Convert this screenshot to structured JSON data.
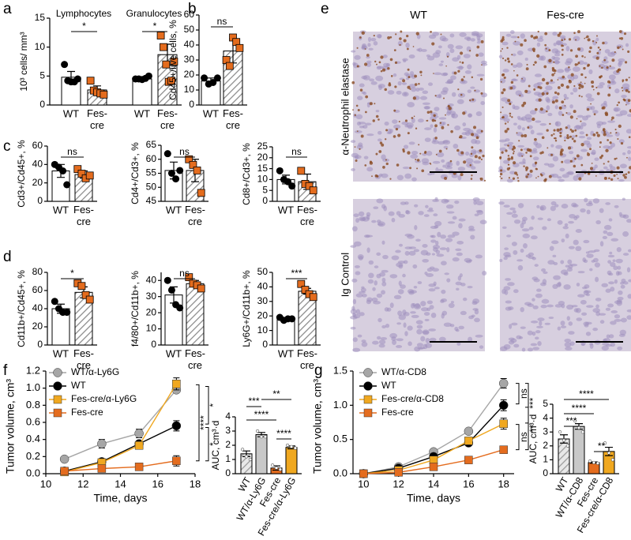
{
  "panel_labels": [
    "a",
    "b",
    "c",
    "d",
    "e",
    "f",
    "g"
  ],
  "images": {
    "columns": [
      "WT",
      "Fes-cre"
    ],
    "rows": [
      "α-Neutrophil elastase",
      "Ig Control"
    ]
  },
  "chart_data": [
    {
      "type": "bar",
      "group_labels": [
        "Lymphocytes",
        "Granulocytes"
      ],
      "ylabel": "10³ cells/ mm³",
      "ylim": [
        0,
        15
      ],
      "yticks": [
        0,
        5,
        10,
        15
      ],
      "categories": [
        "WT",
        "Fes-cre",
        "WT",
        "Fes-cre"
      ],
      "values": [
        4.8,
        2.6,
        4.5,
        8.7
      ],
      "errors": [
        1.0,
        0.7,
        0.3,
        1.8
      ],
      "points": [
        [
          7,
          4.2,
          4,
          4,
          4.5
        ],
        [
          4.2,
          2.5,
          2.2,
          2,
          1.8
        ],
        [
          4.5,
          4.5,
          4.4,
          4.6,
          5
        ],
        [
          12,
          10,
          7,
          4,
          4.2,
          7.5
        ]
      ],
      "fills": [
        "#ffffff",
        "hatch",
        "#ffffff",
        "hatch"
      ],
      "point_colors": [
        "#000000",
        "#e46c1e",
        "#000000",
        "#e46c1e"
      ],
      "point_shapes": [
        "circle",
        "square",
        "circle",
        "square"
      ],
      "annotations": [
        "*",
        "*"
      ]
    },
    {
      "type": "bar",
      "ylabel": "Cd45+/live cells, %",
      "ylim": [
        0,
        60
      ],
      "yticks": [
        0,
        10,
        20,
        30,
        40,
        50,
        60
      ],
      "categories": [
        "WT",
        "Fes-cre"
      ],
      "values": [
        16,
        36
      ],
      "errors": [
        2,
        8
      ],
      "points": [
        [
          18,
          14,
          15,
          18
        ],
        [
          30,
          26,
          45,
          42,
          38
        ]
      ],
      "fills": [
        "#ffffff",
        "hatch"
      ],
      "point_colors": [
        "#000000",
        "#e46c1e"
      ],
      "point_shapes": [
        "circle",
        "square"
      ],
      "annotations": [
        "ns"
      ]
    },
    {
      "type": "bar",
      "ylabel": "Cd3+/Cd45+, %",
      "ylim": [
        0,
        60
      ],
      "yticks": [
        0,
        20,
        40,
        60
      ],
      "categories": [
        "WT",
        "Fes-cre"
      ],
      "values": [
        33,
        29
      ],
      "errors": [
        7,
        4
      ],
      "points": [
        [
          40,
          37,
          33,
          18
        ],
        [
          35,
          30,
          25,
          28
        ]
      ],
      "fills": [
        "#ffffff",
        "hatch"
      ],
      "point_colors": [
        "#000000",
        "#e46c1e"
      ],
      "point_shapes": [
        "circle",
        "square"
      ],
      "annotations": [
        "ns"
      ]
    },
    {
      "type": "bar",
      "ylabel": "Cd4+/Cd3+, %",
      "ylim": [
        45,
        65
      ],
      "yticks": [
        45,
        50,
        55,
        60,
        65
      ],
      "categories": [
        "WT",
        "Fes-cre"
      ],
      "values": [
        56,
        56
      ],
      "errors": [
        3,
        4
      ],
      "points": [
        [
          62,
          55,
          53,
          56
        ],
        [
          60,
          58,
          56,
          48
        ]
      ],
      "fills": [
        "#ffffff",
        "hatch"
      ],
      "point_colors": [
        "#000000",
        "#e46c1e"
      ],
      "point_shapes": [
        "circle",
        "square"
      ],
      "annotations": [
        "ns"
      ]
    },
    {
      "type": "bar",
      "ylabel": "Cd8+/Cd3+, %",
      "ylim": [
        0,
        25
      ],
      "yticks": [
        0,
        5,
        10,
        15,
        20,
        25
      ],
      "categories": [
        "WT",
        "Fes-cre"
      ],
      "values": [
        10,
        9
      ],
      "errors": [
        2,
        3.5
      ],
      "points": [
        [
          14,
          10,
          9,
          7
        ],
        [
          14,
          8,
          7,
          5
        ]
      ],
      "fills": [
        "#ffffff",
        "hatch"
      ],
      "point_colors": [
        "#000000",
        "#e46c1e"
      ],
      "point_shapes": [
        "circle",
        "square"
      ],
      "annotations": [
        "ns"
      ]
    },
    {
      "type": "bar",
      "ylabel": "Cd11b+/Cd45+, %",
      "ylim": [
        0,
        80
      ],
      "yticks": [
        0,
        20,
        40,
        60,
        80
      ],
      "categories": [
        "WT",
        "Fes-cre"
      ],
      "values": [
        40,
        58
      ],
      "errors": [
        5,
        6
      ],
      "points": [
        [
          48,
          40,
          36,
          36
        ],
        [
          68,
          65,
          55,
          50
        ]
      ],
      "fills": [
        "#ffffff",
        "hatch"
      ],
      "point_colors": [
        "#000000",
        "#e46c1e"
      ],
      "point_shapes": [
        "circle",
        "square"
      ],
      "annotations": [
        "*"
      ]
    },
    {
      "type": "bar",
      "ylabel": "f4/80+/Cd11b+, %",
      "ylim": [
        0,
        45
      ],
      "yticks": [
        0,
        10,
        20,
        30,
        40
      ],
      "categories": [
        "WT",
        "Fes-cre"
      ],
      "values": [
        31,
        38
      ],
      "errors": [
        5,
        2
      ],
      "points": [
        [
          40,
          34,
          25,
          23
        ],
        [
          42,
          38,
          37,
          35
        ]
      ],
      "fills": [
        "#ffffff",
        "hatch"
      ],
      "point_colors": [
        "#000000",
        "#e46c1e"
      ],
      "point_shapes": [
        "circle",
        "square"
      ],
      "annotations": [
        "ns"
      ]
    },
    {
      "type": "bar",
      "ylabel": "Ly6G+/Cd11b+, %",
      "ylim": [
        0,
        50
      ],
      "yticks": [
        0,
        10,
        20,
        30,
        40,
        50
      ],
      "categories": [
        "WT",
        "Fes-cre"
      ],
      "values": [
        18,
        37
      ],
      "errors": [
        1,
        2
      ],
      "points": [
        [
          19,
          17,
          18,
          18
        ],
        [
          42,
          38,
          35,
          33
        ]
      ],
      "fills": [
        "#ffffff",
        "hatch"
      ],
      "point_colors": [
        "#000000",
        "#e46c1e"
      ],
      "point_shapes": [
        "circle",
        "square"
      ],
      "annotations": [
        "***"
      ]
    },
    {
      "type": "line",
      "xlabel": "Time, days",
      "ylabel": "Tumor volume, cm³",
      "xlim": [
        10,
        18
      ],
      "xticks": [
        10,
        12,
        14,
        16,
        18
      ],
      "ylim": [
        0,
        1.2
      ],
      "yticks": [
        {
          "value": 0,
          "label": "0.0"
        },
        0.2,
        0.4,
        0.6,
        0.8,
        {
          "value": 1,
          "label": "1.0"
        },
        1.2
      ],
      "x": [
        11,
        13,
        15,
        17
      ],
      "series": [
        {
          "name": "WT/α-Ly6G",
          "color": "#a6a6a6",
          "marker": "circle",
          "values": [
            0.17,
            0.35,
            0.47,
            0.98
          ],
          "errors": [
            0.02,
            0.05,
            0.05,
            0.03
          ]
        },
        {
          "name": "WT",
          "color": "#000000",
          "marker": "circle",
          "values": [
            0.03,
            0.14,
            0.35,
            0.56
          ],
          "errors": [
            0.01,
            0.02,
            0.03,
            0.06
          ]
        },
        {
          "name": "Fes-cre/α-Ly6G",
          "color": "#f0a820",
          "marker": "square",
          "values": [
            0.02,
            0.13,
            0.33,
            1.05
          ],
          "errors": [
            0.01,
            0.02,
            0.03,
            0.07
          ]
        },
        {
          "name": "Fes-cre",
          "color": "#e46c1e",
          "marker": "square",
          "values": [
            0.03,
            0.06,
            0.08,
            0.15
          ],
          "errors": [
            0.01,
            0.01,
            0.02,
            0.06
          ]
        }
      ],
      "annotations": [
        "*",
        "*",
        "****"
      ]
    },
    {
      "type": "bar",
      "ylabel": "AUC, cm³·d",
      "ylim": [
        0,
        4
      ],
      "yticks": [
        0,
        1,
        2,
        3,
        4
      ],
      "categories": [
        "WT",
        "WT/α-Ly6G",
        "Fes-cre",
        "Fes-cre/α-Ly6G"
      ],
      "values": [
        1.4,
        2.75,
        0.4,
        1.85
      ],
      "errors": [
        0.2,
        0.15,
        0.15,
        0.1
      ],
      "points": [
        [
          1.7,
          1.2,
          1.0
        ],
        [
          3.0,
          2.6,
          2.6
        ],
        [
          0.6,
          0.4,
          0.3
        ],
        [
          2.0,
          1.9,
          1.8
        ]
      ],
      "fills": [
        "hatch-gray",
        "#c8c8c8",
        "#e46c1e",
        "#f0a820"
      ],
      "point_colors": [
        "#ffffff",
        "#ffffff",
        "#ffffff",
        "#ffffff"
      ],
      "point_shapes": [
        "circle",
        "circle",
        "circle",
        "circle"
      ],
      "rotate_labels": true,
      "annotations": [
        "***",
        "****",
        "**",
        "****"
      ]
    },
    {
      "type": "line",
      "xlabel": "Time, days",
      "ylabel": "Tumor volume, cm³",
      "xlim": [
        9.4,
        18.6
      ],
      "xticks": [
        10,
        12,
        14,
        16,
        18
      ],
      "ylim": [
        0,
        1.5
      ],
      "yticks": [
        {
          "value": 0,
          "label": "0.0"
        },
        0.5,
        {
          "value": 1,
          "label": "1.0"
        },
        1.5
      ],
      "x": [
        10,
        12,
        14,
        16,
        18
      ],
      "series": [
        {
          "name": "WT/α-CD8",
          "color": "#a6a6a6",
          "marker": "circle",
          "values": [
            0,
            0.1,
            0.32,
            0.62,
            1.32
          ],
          "errors": [
            0,
            0.01,
            0.02,
            0.03,
            0.07
          ]
        },
        {
          "name": "WT",
          "color": "#000000",
          "marker": "circle",
          "values": [
            0,
            0.08,
            0.25,
            0.45,
            1.0
          ],
          "errors": [
            0,
            0.01,
            0.02,
            0.03,
            0.08
          ]
        },
        {
          "name": "Fes-cre/α-CD8",
          "color": "#f0a820",
          "marker": "square",
          "values": [
            0,
            0.05,
            0.2,
            0.48,
            0.73
          ],
          "errors": [
            0,
            0.01,
            0.02,
            0.04,
            0.08
          ]
        },
        {
          "name": "Fes-cre",
          "color": "#e46c1e",
          "marker": "square",
          "values": [
            0,
            0.02,
            0.1,
            0.2,
            0.35
          ],
          "errors": [
            0,
            0.01,
            0.01,
            0.02,
            0.03
          ]
        }
      ],
      "annotations": [
        "ns",
        "***",
        "ns",
        "**"
      ]
    },
    {
      "type": "bar",
      "ylabel": "AUC, cm³·d",
      "ylim": [
        0,
        5
      ],
      "yticks": [
        0,
        1,
        2,
        3,
        4,
        5
      ],
      "categories": [
        "WT",
        "WT/α-CD8",
        "Fes-cre",
        "Fes-cre/α-CD8"
      ],
      "values": [
        2.5,
        3.4,
        0.8,
        1.6
      ],
      "errors": [
        0.3,
        0.2,
        0.05,
        0.3
      ],
      "points": [
        [
          3.0,
          2.4,
          2.0
        ],
        [
          3.8,
          3.3,
          3.0
        ],
        [
          0.9,
          0.8,
          0.75
        ],
        [
          2.2,
          1.5,
          1.0
        ]
      ],
      "fills": [
        "hatch-gray",
        "#c8c8c8",
        "#e46c1e",
        "#f0a820"
      ],
      "point_colors": [
        "#ffffff",
        "#ffffff",
        "#ffffff",
        "#ffffff"
      ],
      "point_shapes": [
        "circle",
        "circle",
        "circle",
        "circle"
      ],
      "rotate_labels": true,
      "annotations": [
        "***",
        "****",
        "****",
        "**"
      ]
    }
  ]
}
